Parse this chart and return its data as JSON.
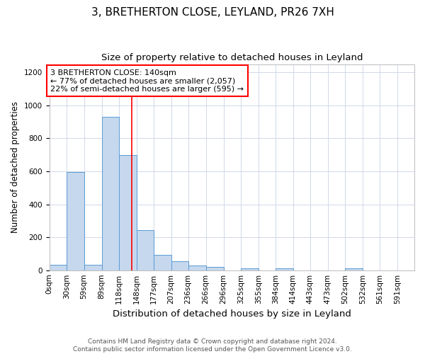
{
  "title1": "3, BRETHERTON CLOSE, LEYLAND, PR26 7XH",
  "title2": "Size of property relative to detached houses in Leyland",
  "xlabel": "Distribution of detached houses by size in Leyland",
  "ylabel": "Number of detached properties",
  "bin_edges": [
    0,
    30,
    59,
    89,
    118,
    148,
    177,
    207,
    236,
    266,
    296,
    325,
    355,
    384,
    414,
    443,
    473,
    502,
    532,
    561,
    591,
    620
  ],
  "bin_labels": [
    "0sqm",
    "30sqm",
    "59sqm",
    "89sqm",
    "118sqm",
    "148sqm",
    "177sqm",
    "207sqm",
    "236sqm",
    "266sqm",
    "296sqm",
    "325sqm",
    "355sqm",
    "384sqm",
    "414sqm",
    "443sqm",
    "473sqm",
    "502sqm",
    "532sqm",
    "561sqm",
    "591sqm"
  ],
  "counts": [
    35,
    595,
    35,
    930,
    700,
    245,
    95,
    55,
    30,
    20,
    0,
    10,
    0,
    10,
    0,
    0,
    0,
    10,
    0,
    0,
    0
  ],
  "bar_color": "#c5d8ed",
  "bar_edge_color": "#5b9bd5",
  "grid_color": "#d0d8e8",
  "ref_line_x": 140,
  "ref_line_color": "red",
  "annotation_text": "3 BRETHERTON CLOSE: 140sqm\n← 77% of detached houses are smaller (2,057)\n22% of semi-detached houses are larger (595) →",
  "annotation_box_color": "white",
  "annotation_box_edge": "red",
  "ylim": [
    0,
    1250
  ],
  "yticks": [
    0,
    200,
    400,
    600,
    800,
    1000,
    1200
  ],
  "footer_text": "Contains HM Land Registry data © Crown copyright and database right 2024.\nContains public sector information licensed under the Open Government Licence v3.0.",
  "title1_fontsize": 11,
  "title2_fontsize": 9.5,
  "xlabel_fontsize": 9.5,
  "ylabel_fontsize": 8.5,
  "tick_fontsize": 7.5,
  "annotation_fontsize": 8,
  "footer_fontsize": 6.5
}
